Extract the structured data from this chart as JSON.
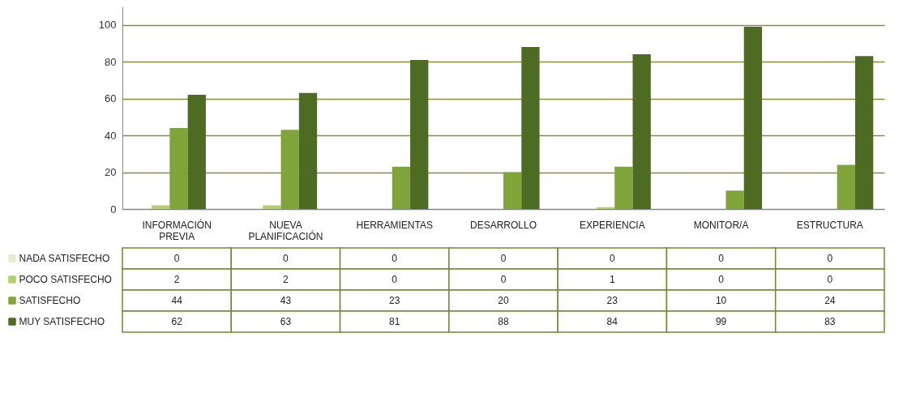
{
  "chart_data": {
    "type": "bar",
    "categories": [
      "INFORMACIÓN PREVIA",
      "NUEVA PLANIFICACIÓN",
      "HERRAMIENTAS",
      "DESARROLLO",
      "EXPERIENCIA",
      "MONITOR/A",
      "ESTRUCTURA"
    ],
    "series": [
      {
        "name": "NADA SATISFECHO",
        "color": "#e6ecc9",
        "values": [
          0,
          0,
          0,
          0,
          0,
          0,
          0
        ]
      },
      {
        "name": "POCO SATISFECHO",
        "color": "#b3cf6a",
        "values": [
          2,
          2,
          0,
          0,
          1,
          0,
          0
        ]
      },
      {
        "name": "SATISFECHO",
        "color": "#7fa43a",
        "values": [
          44,
          43,
          23,
          20,
          23,
          10,
          24
        ]
      },
      {
        "name": "MUY SATISFECHO",
        "color": "#4d6b22",
        "values": [
          62,
          63,
          81,
          88,
          84,
          99,
          83
        ]
      }
    ],
    "ylim": [
      0,
      110
    ],
    "yticks": [
      0,
      20,
      40,
      60,
      80,
      100
    ],
    "grid": "y",
    "legend": "bottom left",
    "data_labels": true
  }
}
